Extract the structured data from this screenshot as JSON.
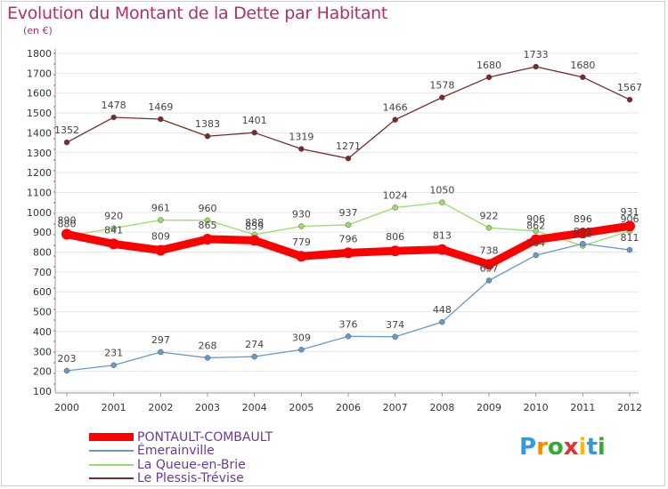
{
  "header": {
    "title": "Evolution du Montant de la Dette par Habitant",
    "subtitle": "(en €)"
  },
  "logo": {
    "text": "Proxiti"
  },
  "chart_data": {
    "type": "line",
    "title": "Evolution du Montant de la Dette par Habitant",
    "subtitle": "(en €)",
    "xlabel": "",
    "ylabel": "",
    "x": [
      "2000",
      "2001",
      "2002",
      "2003",
      "2004",
      "2005",
      "2006",
      "2007",
      "2008",
      "2009",
      "2010",
      "2011",
      "2012"
    ],
    "ylim": [
      100,
      1800
    ],
    "yticks": [
      100,
      200,
      300,
      400,
      500,
      600,
      700,
      800,
      900,
      1000,
      1100,
      1200,
      1300,
      1400,
      1500,
      1600,
      1700,
      1800
    ],
    "grid": true,
    "legend_position": "bottom-left",
    "series": [
      {
        "name": "PONTAULT-COMBAULT",
        "color": "#ff0000",
        "values": [
          890,
          841,
          809,
          865,
          859,
          779,
          796,
          806,
          813,
          738,
          862,
          896,
          931
        ]
      },
      {
        "name": "Émerainville",
        "color": "#6699cc",
        "values": [
          203,
          231,
          297,
          268,
          274,
          309,
          376,
          374,
          448,
          657,
          784,
          842,
          811
        ]
      },
      {
        "name": "La Queue-en-Brie",
        "color": "#99dd66",
        "values": [
          880,
          920,
          961,
          960,
          888,
          930,
          937,
          1024,
          1050,
          922,
          906,
          832,
          906
        ]
      },
      {
        "name": "Le Plessis-Trévise",
        "color": "#7a2a2a",
        "values": [
          1352,
          1478,
          1469,
          1383,
          1401,
          1319,
          1271,
          1466,
          1578,
          1680,
          1733,
          1680,
          1567
        ]
      }
    ]
  }
}
